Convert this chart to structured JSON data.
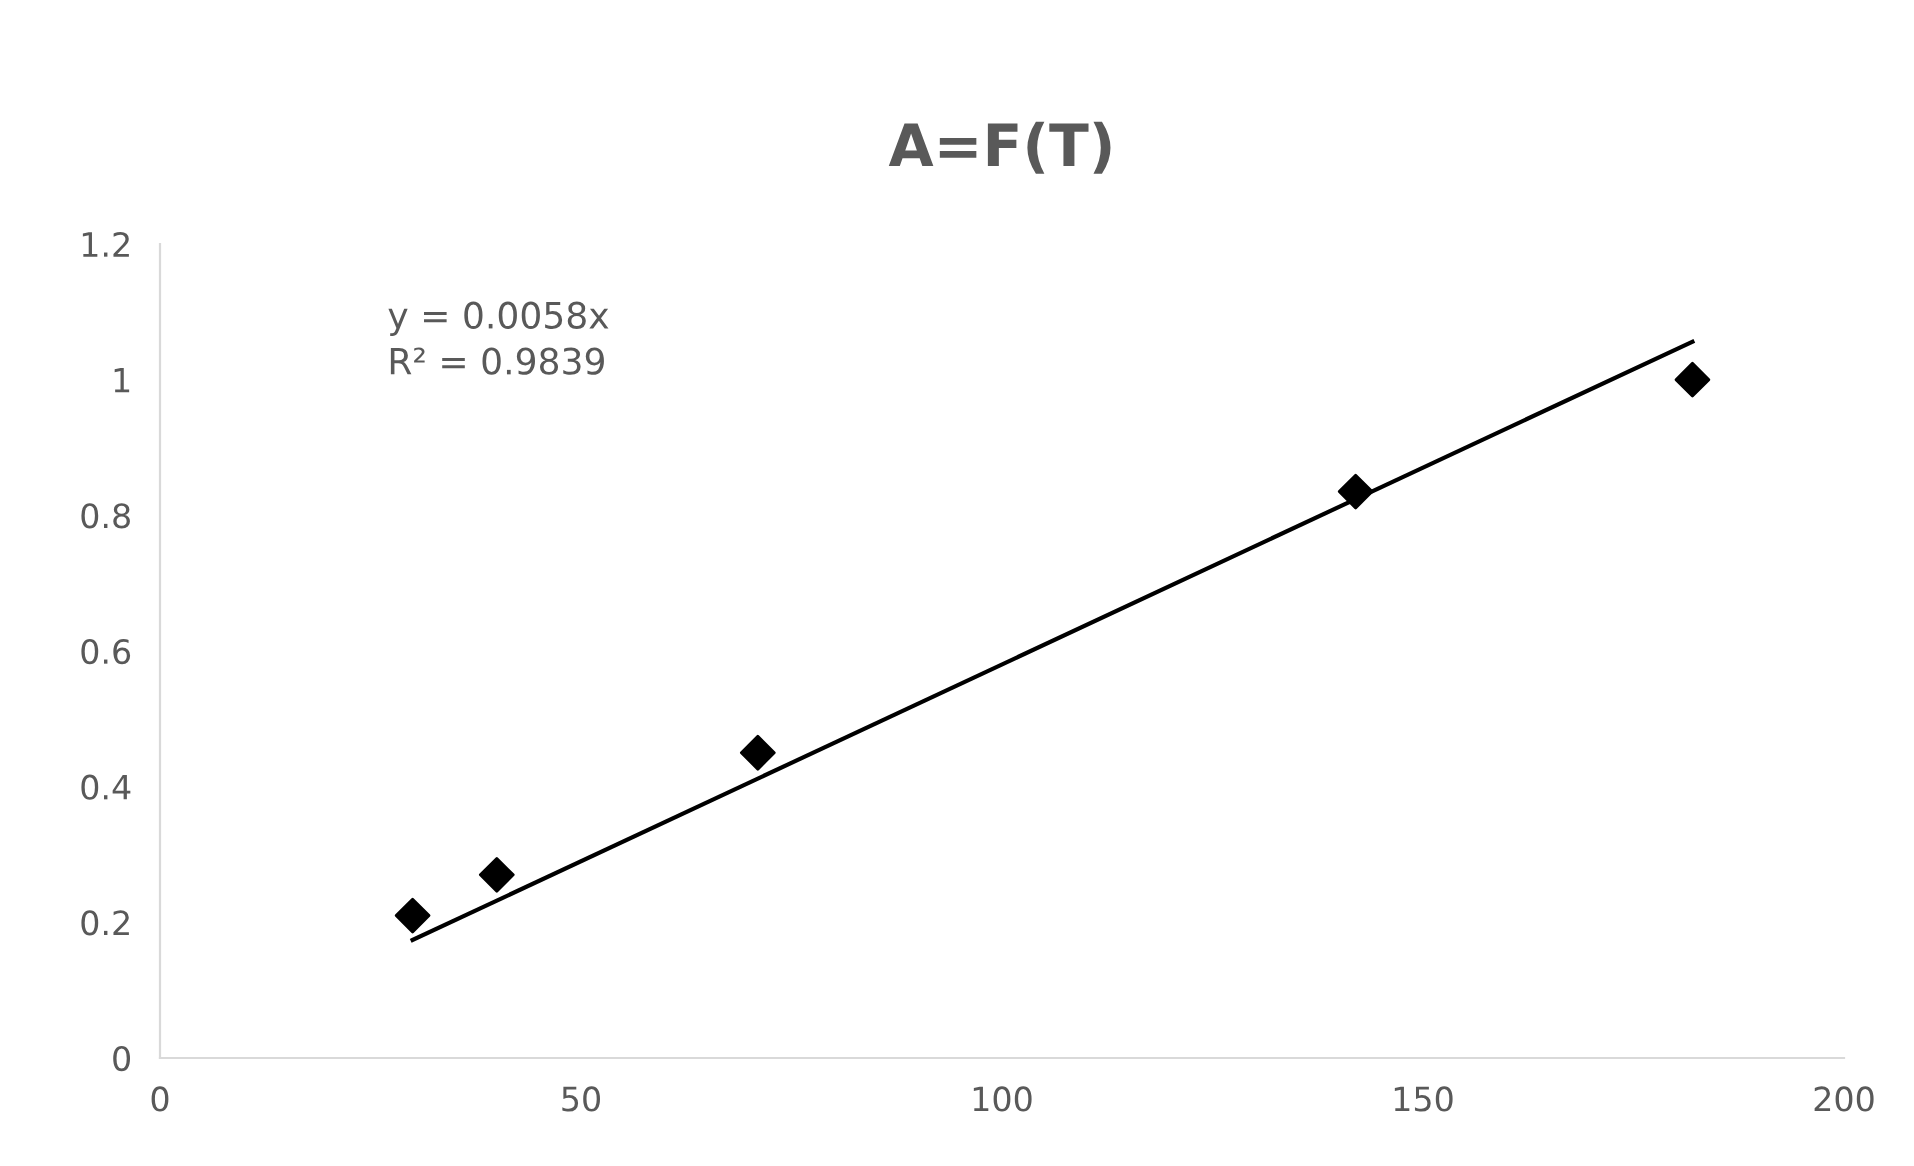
{
  "chart_data": {
    "type": "scatter",
    "title": "A=F(T)",
    "series": [
      {
        "color": "#000000",
        "marker": "diamond",
        "x": [
          30,
          40,
          71,
          142,
          182
        ],
        "values": [
          0.21,
          0.27,
          0.45,
          0.835,
          1.0
        ]
      },
      {
        "type": "line",
        "color": "#000000",
        "marker": "none",
        "x": [
          30,
          182
        ],
        "values": [
          0.174,
          1.056
        ]
      }
    ],
    "annotations": [
      {
        "text": "y = 0.0058x\nR² = 0.9839"
      }
    ],
    "xlim": [
      0,
      200
    ],
    "xticks": [
      0,
      50,
      100,
      150,
      200
    ],
    "ylim": [
      0,
      1.2
    ],
    "yticks": [
      0,
      0.2,
      0.4,
      0.6,
      0.8,
      1,
      1.2
    ],
    "grid": false,
    "legend": false
  }
}
